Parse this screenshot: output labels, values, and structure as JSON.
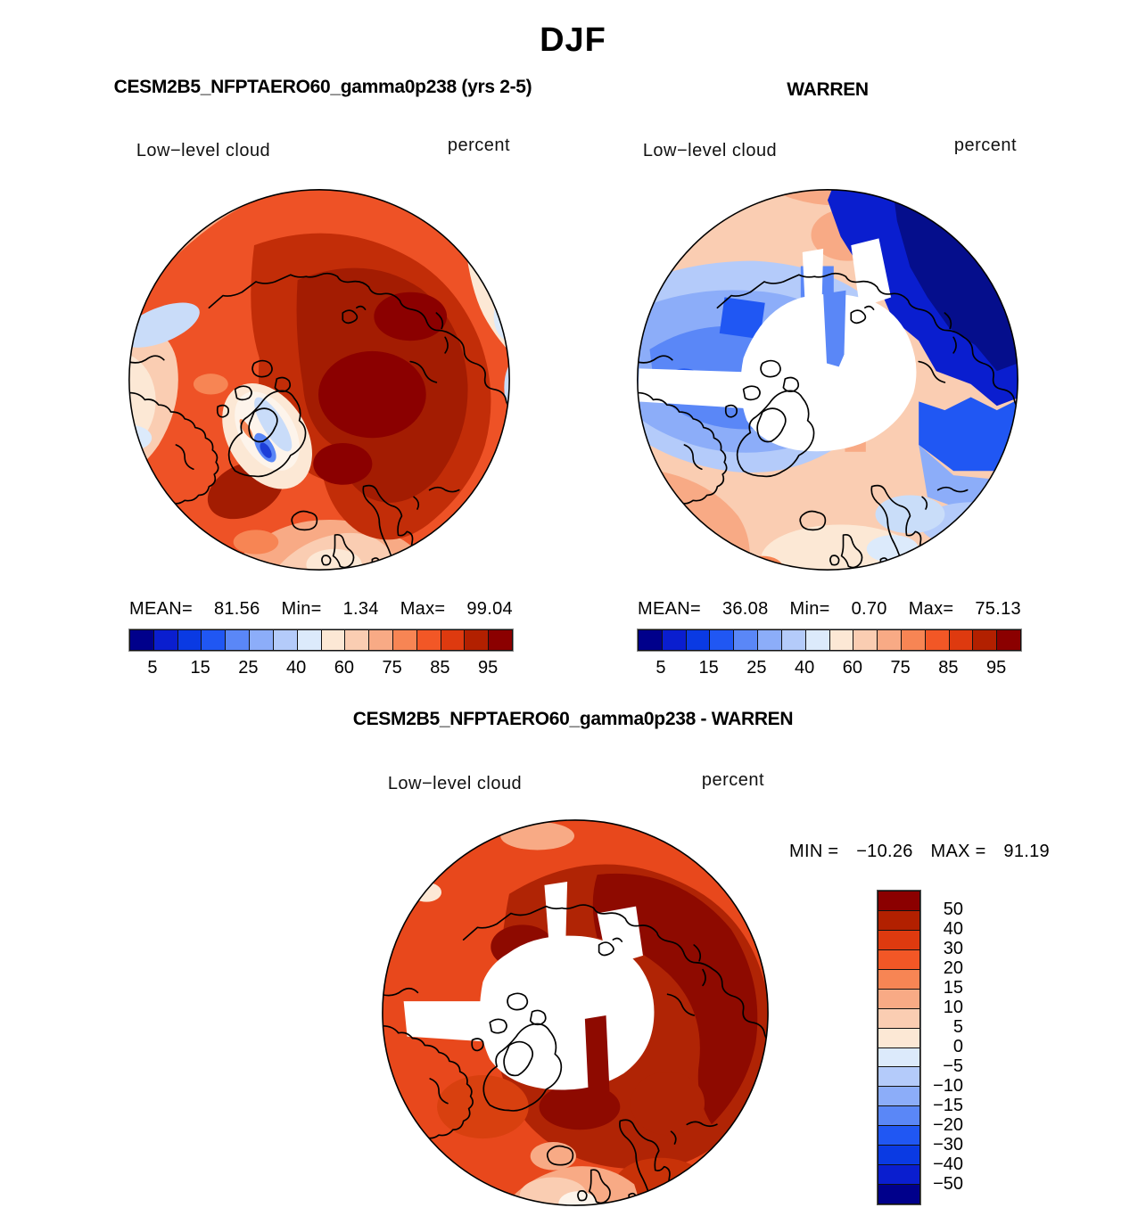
{
  "header": {
    "title": "DJF"
  },
  "chart_data": [
    {
      "type": "heatmap",
      "subtype": "north-polar-stereographic-filled-contour-map",
      "title": "CESM2B5_NFPTAERO60_gamma0p238 (yrs 2-5)",
      "variable": "Low−level cloud",
      "units": "percent",
      "stats": {
        "mean_label": "MEAN=",
        "mean": "81.56",
        "min_label": "Min=",
        "min": "1.34",
        "max_label": "Max=",
        "max": "99.04"
      },
      "colorbar": {
        "orientation": "horizontal",
        "tick_labels": [
          "5",
          "15",
          "25",
          "40",
          "60",
          "75",
          "85",
          "95"
        ],
        "levels": [
          1,
          5,
          10,
          15,
          20,
          25,
          30,
          40,
          50,
          60,
          70,
          75,
          80,
          85,
          90,
          95
        ],
        "colors": [
          "#00008b",
          "#0a1ecf",
          "#0a3ae3",
          "#2057f3",
          "#5a87f7",
          "#8cadf9",
          "#b4cbfa",
          "#dceafb",
          "#fce8d5",
          "#facdb2",
          "#f8aa85",
          "#f78554",
          "#f25726",
          "#de3a0f",
          "#b22000",
          "#8b0000"
        ]
      },
      "summary": "Model low-level cloud fraction: 75-95% reds over Arctic Ocean, pale/blue minimum over Greenland interior, pale-blue patches at western rim"
    },
    {
      "type": "heatmap",
      "subtype": "north-polar-stereographic-filled-contour-map",
      "title": "WARREN",
      "variable": "Low−level cloud",
      "units": "percent",
      "stats": {
        "mean_label": "MEAN=",
        "mean": "36.08",
        "min_label": "Min=",
        "min": "0.70",
        "max_label": "Max=",
        "max": "75.13"
      },
      "colorbar": {
        "orientation": "horizontal",
        "tick_labels": [
          "5",
          "15",
          "25",
          "40",
          "60",
          "75",
          "85",
          "95"
        ],
        "levels": [
          1,
          5,
          10,
          15,
          20,
          25,
          30,
          40,
          50,
          60,
          70,
          75,
          80,
          85,
          90,
          95
        ],
        "colors": [
          "#00008b",
          "#0a1ecf",
          "#0a3ae3",
          "#2057f3",
          "#5a87f7",
          "#8cadf9",
          "#b4cbfa",
          "#dceafb",
          "#fce8d5",
          "#facdb2",
          "#f8aa85",
          "#f78554",
          "#f25726",
          "#de3a0f",
          "#b22000",
          "#8b0000"
        ]
      },
      "summary": "Observed (Warren) low-level cloud: 5-25% blues over ocean sectors with dark-blue minimum toward Siberian side, peach 40-60% at outer rim, white = missing data over land/central Arctic"
    },
    {
      "type": "heatmap",
      "subtype": "north-polar-stereographic-filled-contour-difference-map",
      "title": "CESM2B5_NFPTAERO60_gamma0p238 - WARREN",
      "variable": "Low−level cloud",
      "units": "percent",
      "stats": {
        "min_label": "MIN =",
        "min": "−10.26",
        "max_label": "MAX =",
        "max": "91.19"
      },
      "colorbar": {
        "orientation": "vertical",
        "tick_labels": [
          "50",
          "40",
          "30",
          "20",
          "15",
          "10",
          "5",
          "0",
          "−5",
          "−10",
          "−15",
          "−20",
          "−30",
          "−40",
          "−50"
        ],
        "colors": [
          "#8b0000",
          "#b22000",
          "#de3a0f",
          "#f25726",
          "#f78554",
          "#f8aa85",
          "#facdb2",
          "#fce8d5",
          "#dceafb",
          "#b4cbfa",
          "#8cadf9",
          "#5a87f7",
          "#2057f3",
          "#0a3ae3",
          "#0a1ecf",
          "#00008b"
        ]
      },
      "summary": "Model minus observations: strong positive bias (dark red, >50%) over Arctic Ocean ring, 10-30% oranges elsewhere, white = missing observations"
    }
  ],
  "colors": {
    "map_outline": "#000000",
    "coastline": "#000000",
    "missing_data": "#ffffff",
    "background": "#ffffff"
  }
}
